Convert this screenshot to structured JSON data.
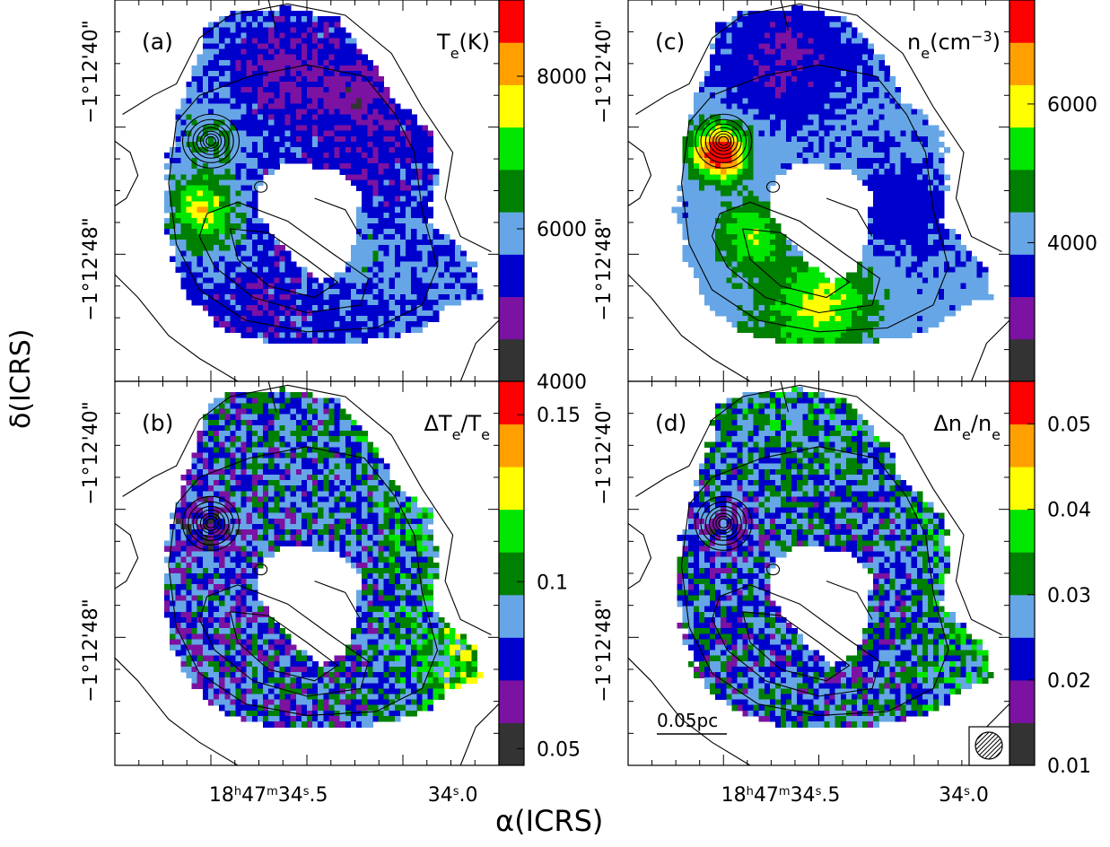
{
  "figure": {
    "ylabel": "δ(ICRS)",
    "xlabel": "α(ICRS)",
    "x_ticks": [
      {
        "id": "ra1",
        "html": "18<tspan baseline-shift='super' font-size='13'>h</tspan>47<tspan baseline-shift='super' font-size='13'>m</tspan>34<tspan baseline-shift='super' font-size='13'>s</tspan>.5",
        "value": "18h47m34.5s"
      },
      {
        "id": "ra2",
        "html": "34<tspan baseline-shift='super' font-size='13'>s</tspan>.0",
        "value": "34.0s"
      }
    ],
    "x_tick_text": [
      "18h47m34.5s",
      "34.0s"
    ],
    "y_tick_text": [
      "−1°12'40\"",
      "−1°12'48\""
    ],
    "scalebar": "0.05pc"
  },
  "chart_data": [
    {
      "type": "heatmap",
      "panel": "(a)",
      "quantity_label": "Te(K)",
      "colorbar": {
        "ticks": [
          4000,
          6000,
          8000
        ],
        "range": [
          4000,
          9000
        ]
      },
      "colors": [
        "#333333",
        "#7b12a1",
        "#0000cc",
        "#66a6e6",
        "#008000",
        "#00e600",
        "#ffff00",
        "#ffa000",
        "#ff0000"
      ]
    },
    {
      "type": "heatmap",
      "panel": "(b)",
      "quantity_label": "ΔTe/Te",
      "colorbar": {
        "ticks": [
          0.05,
          0.1,
          0.15
        ],
        "range": [
          0.045,
          0.16
        ]
      },
      "colors": [
        "#333333",
        "#7b12a1",
        "#0000cc",
        "#66a6e6",
        "#008000",
        "#00e600",
        "#ffff00",
        "#ffa000",
        "#ff0000"
      ]
    },
    {
      "type": "heatmap",
      "panel": "(c)",
      "quantity_label": "ne(cm−3)",
      "colorbar": {
        "ticks": [
          4000,
          6000
        ],
        "range": [
          2000,
          7500
        ]
      },
      "colors": [
        "#333333",
        "#7b12a1",
        "#0000cc",
        "#66a6e6",
        "#008000",
        "#00e600",
        "#ffff00",
        "#ffa000",
        "#ff0000"
      ]
    },
    {
      "type": "heatmap",
      "panel": "(d)",
      "quantity_label": "Δne/ne",
      "colorbar": {
        "ticks": [
          0.01,
          0.02,
          0.03,
          0.04,
          0.05
        ],
        "range": [
          0.01,
          0.055
        ]
      },
      "colors": [
        "#333333",
        "#7b12a1",
        "#0000cc",
        "#66a6e6",
        "#008000",
        "#00e600",
        "#ffff00",
        "#ffa000",
        "#ff0000"
      ]
    }
  ]
}
